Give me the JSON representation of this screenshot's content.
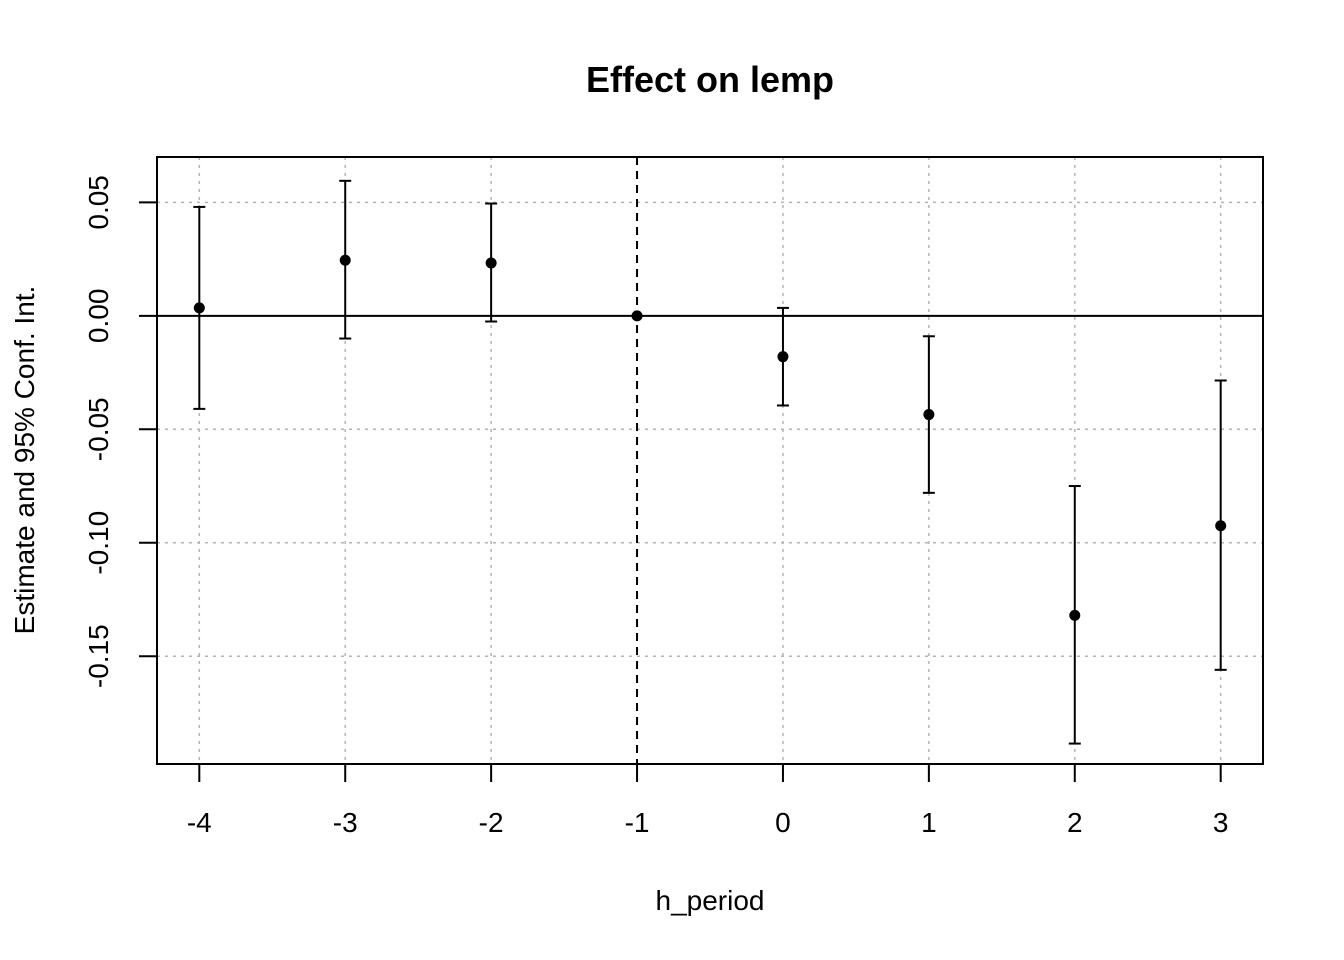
{
  "chart_data": {
    "type": "scatter",
    "title": "Effect on lemp",
    "xlabel": "h_period",
    "ylabel": "Estimate and 95% Conf. Int.",
    "x": [
      -4,
      -3,
      -2,
      -1,
      0,
      1,
      2,
      3
    ],
    "estimate": [
      0.0035,
      0.0245,
      0.0233,
      0.0,
      -0.018,
      -0.0435,
      -0.132,
      -0.0925
    ],
    "ci_low": [
      -0.041,
      -0.01,
      -0.0025,
      0.0,
      -0.0395,
      -0.078,
      -0.1885,
      -0.156
    ],
    "ci_high": [
      0.048,
      0.0595,
      0.0495,
      0.0,
      0.0035,
      -0.009,
      -0.075,
      -0.0285
    ],
    "x_ticks": [
      "-4",
      "-3",
      "-2",
      "-1",
      "0",
      "1",
      "2",
      "3"
    ],
    "y_ticks": [
      "0.05",
      "0.00",
      "-0.05",
      "-0.10",
      "-0.15"
    ],
    "xlim": [
      -4.29,
      3.29
    ],
    "ylim": [
      -0.1975,
      0.07
    ],
    "reference_x": -1,
    "reference_y": 0,
    "grid": true
  }
}
